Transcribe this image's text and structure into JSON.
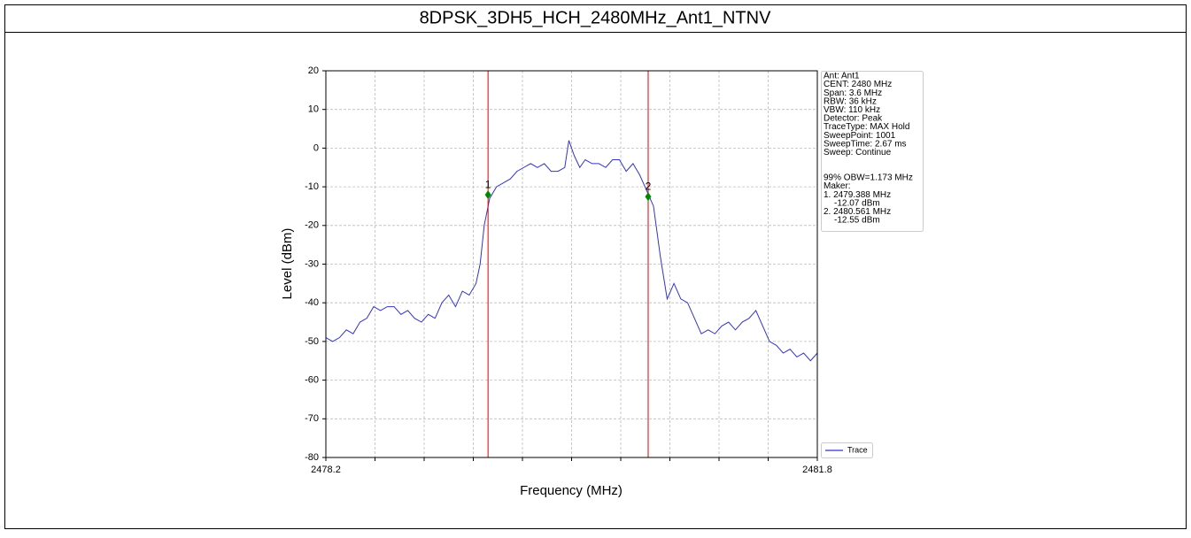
{
  "chart_data": {
    "type": "line",
    "title": "8DPSK_3DH5_HCH_2480MHz_Ant1_NTNV",
    "xlabel": "Frequency (MHz)",
    "ylabel": "Level (dBm)",
    "xlim": [
      2478.2,
      2481.8
    ],
    "ylim": [
      -80,
      20
    ],
    "xticks": [
      2478.2,
      2481.8
    ],
    "xgrid_ticks": [
      2478.56,
      2478.92,
      2479.28,
      2479.64,
      2480.0,
      2480.36,
      2480.72,
      2481.08,
      2481.44
    ],
    "yticks": [
      -80,
      -70,
      -60,
      -50,
      -40,
      -30,
      -20,
      -10,
      0,
      10,
      20
    ],
    "grid": true,
    "legend": "lower right",
    "series": [
      {
        "name": "Trace",
        "color": "#3333cc",
        "x": [
          2478.2,
          2478.25,
          2478.3,
          2478.35,
          2478.4,
          2478.45,
          2478.5,
          2478.55,
          2478.6,
          2478.65,
          2478.7,
          2478.75,
          2478.8,
          2478.85,
          2478.9,
          2478.95,
          2479.0,
          2479.05,
          2479.1,
          2479.15,
          2479.2,
          2479.25,
          2479.3,
          2479.33,
          2479.36,
          2479.4,
          2479.45,
          2479.5,
          2479.55,
          2479.6,
          2479.65,
          2479.7,
          2479.75,
          2479.8,
          2479.85,
          2479.9,
          2479.95,
          2479.98,
          2480.02,
          2480.06,
          2480.1,
          2480.15,
          2480.2,
          2480.25,
          2480.3,
          2480.35,
          2480.4,
          2480.45,
          2480.5,
          2480.55,
          2480.6,
          2480.65,
          2480.7,
          2480.75,
          2480.8,
          2480.85,
          2480.9,
          2480.95,
          2481.0,
          2481.05,
          2481.1,
          2481.15,
          2481.2,
          2481.25,
          2481.3,
          2481.35,
          2481.4,
          2481.45,
          2481.5,
          2481.55,
          2481.6,
          2481.65,
          2481.7,
          2481.75,
          2481.8
        ],
        "values": [
          -49,
          -50,
          -49,
          -47,
          -48,
          -45,
          -44,
          -41,
          -42,
          -41,
          -41,
          -43,
          -42,
          -44,
          -45,
          -43,
          -44,
          -40,
          -38,
          -41,
          -37,
          -38,
          -35,
          -30,
          -20,
          -13,
          -10,
          -9,
          -8,
          -6,
          -5,
          -4,
          -5,
          -4,
          -6,
          -6,
          -5,
          2,
          -2,
          -5,
          -3,
          -4,
          -4,
          -5,
          -3,
          -3,
          -6,
          -4,
          -7,
          -11,
          -15,
          -28,
          -39,
          -35,
          -39,
          -40,
          -44,
          -48,
          -47,
          -48,
          -46,
          -45,
          -47,
          -45,
          -44,
          -42,
          -46,
          -50,
          -51,
          -53,
          -52,
          -54,
          -53,
          -55,
          -53
        ]
      }
    ],
    "vlines_color": "#dd0000",
    "marker_color": "#008800",
    "markers": [
      {
        "name": "1",
        "x": 2479.388,
        "y": -12.07,
        "x_label": "1. 2479.388 MHz",
        "y_label": "-12.07 dBm"
      },
      {
        "name": "2",
        "x": 2480.561,
        "y": -12.55,
        "x_label": "2. 2480.561 MHz",
        "y_label": "-12.55 dBm"
      }
    ],
    "settings": [
      "Ant: Ant1",
      "CENT: 2480 MHz",
      "Span: 3.6 MHz",
      "RBW: 36 kHz",
      "VBW: 110 kHz",
      "Detector: Peak",
      "TraceType: MAX Hold",
      "SweepPoint: 1001",
      "SweepTime: 2.67 ms",
      "Sweep: Continue"
    ],
    "obw": "99% OBW=1.173 MHz",
    "marker_heading": "Maker:"
  }
}
